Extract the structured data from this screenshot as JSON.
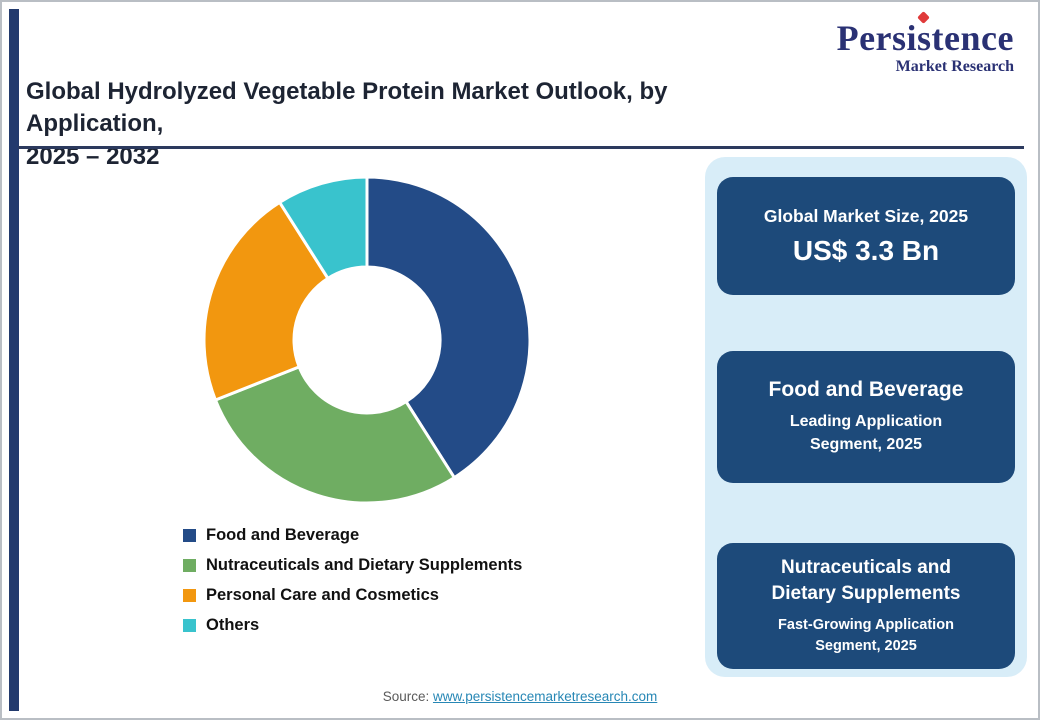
{
  "page": {
    "title_line1": "Global Hydrolyzed Vegetable Protein Market Outlook, by Application,",
    "title_line2": "2025 – 2032"
  },
  "logo": {
    "name": "Persistence",
    "subtitle": "Market Research",
    "brand_color": "#2a3174",
    "accent_color": "#e03a3a"
  },
  "chart_data": {
    "type": "pie",
    "title": "Global Hydrolyzed Vegetable Protein Market Outlook, by Application, 2025 – 2032",
    "donut": true,
    "start_angle_deg": 0,
    "legend_position": "bottom-left",
    "segments": [
      {
        "label": "Food and Beverage",
        "value": 41,
        "color": "#234b87"
      },
      {
        "label": "Nutraceuticals and Dietary Supplements",
        "value": 28,
        "color": "#6fad62"
      },
      {
        "label": "Personal Care and Cosmetics",
        "value": 22,
        "color": "#f2970f"
      },
      {
        "label": "Others",
        "value": 9,
        "color": "#39c3cd"
      }
    ]
  },
  "sidebar": {
    "panel_color": "#d8edf8",
    "box_color": "#1d4a7a",
    "boxes": [
      {
        "line1": "Global Market Size, 2025",
        "line2": "US$ 3.3 Bn"
      },
      {
        "line1": "Food and Beverage",
        "line2": "Leading Application Segment, 2025"
      },
      {
        "line1": "Nutraceuticals and Dietary Supplements",
        "line2": "Fast-Growing Application Segment, 2025"
      }
    ]
  },
  "footer": {
    "source_label": "Source: ",
    "source_link": "www.persistencemarketresearch.com"
  }
}
